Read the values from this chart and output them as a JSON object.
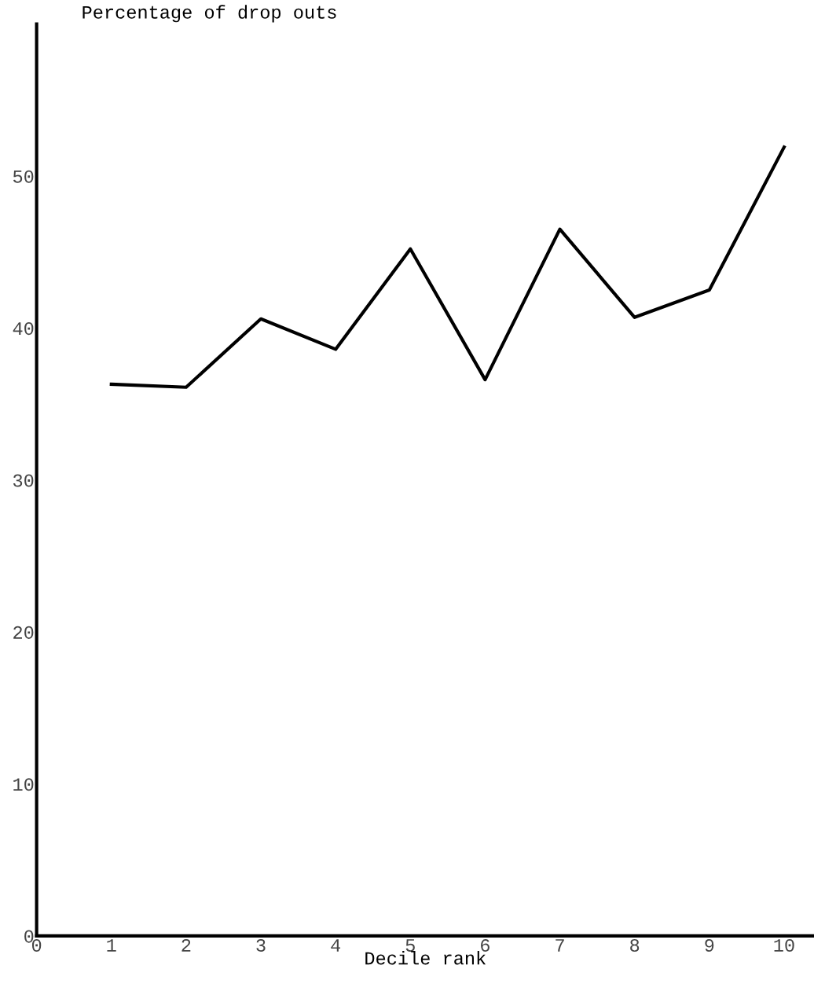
{
  "chart_data": {
    "type": "line",
    "ylabel": "Percentage of drop outs",
    "xlabel": "Decile rank",
    "x": [
      1,
      2,
      3,
      4,
      5,
      6,
      7,
      8,
      9,
      10
    ],
    "series": [
      {
        "color": "#000000",
        "values": [
          36.3,
          36.1,
          40.6,
          38.6,
          45.2,
          36.6,
          46.5,
          40.7,
          42.5,
          51.9
        ]
      }
    ],
    "xlim": [
      0,
      10.4
    ],
    "ylim": [
      0,
      60
    ],
    "xticks": [
      0,
      1,
      2,
      3,
      4,
      5,
      6,
      7,
      8,
      9,
      10
    ],
    "yticks": [
      0,
      10,
      20,
      30,
      40,
      50
    ],
    "grid": false,
    "legend": false,
    "marker": "none",
    "line_style": "solid"
  }
}
